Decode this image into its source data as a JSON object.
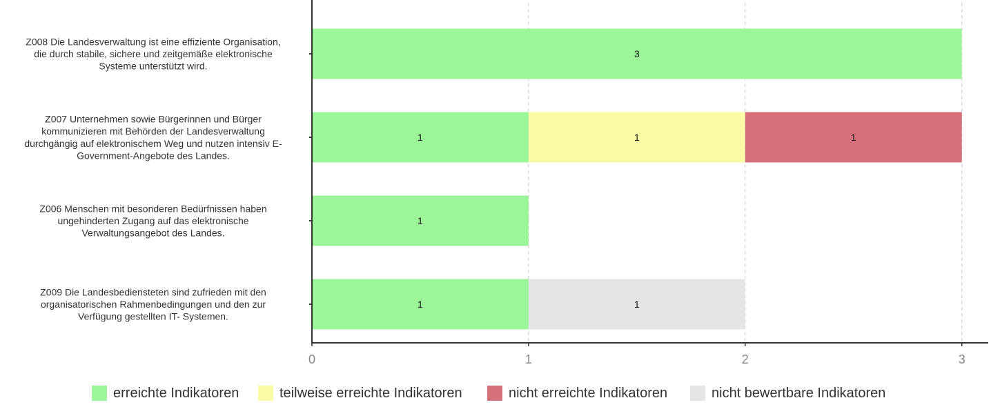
{
  "chart_data": {
    "type": "bar",
    "orientation": "horizontal",
    "stacked": true,
    "categories": [
      [
        "Z008 Die Landesverwaltung ist eine effiziente Organisation,",
        "die durch stabile, sichere und zeitgemäße elektronische",
        "Systeme unterstützt wird."
      ],
      [
        "Z007 Unternehmen sowie Bürgerinnen und Bürger",
        "kommunizieren mit Behörden der Landesverwaltung",
        "durchgängig auf elektronischem Weg und nutzen intensiv E-",
        "Government-Angebote des Landes."
      ],
      [
        "Z006 Menschen mit besonderen Bedürfnissen haben",
        "ungehinderten Zugang auf das elektronische",
        "Verwaltungsangebot des Landes."
      ],
      [
        "Z009 Die Landesbediensteten sind zufrieden mit den",
        "organisatorischen Rahmenbedingungen und den zur",
        "Verfügung gestellten IT- Systemen."
      ]
    ],
    "series": [
      {
        "name": "erreichte Indikatoren",
        "color": "#9cf598",
        "values": [
          3,
          1,
          1,
          1
        ]
      },
      {
        "name": "teilweise erreichte Indikatoren",
        "color": "#f9fca5",
        "values": [
          0,
          1,
          0,
          0
        ]
      },
      {
        "name": "nicht erreichte Indikatoren",
        "color": "#d6717b",
        "values": [
          0,
          1,
          0,
          0
        ]
      },
      {
        "name": "nicht bewertbare Indikatoren",
        "color": "#e5e5e5",
        "values": [
          0,
          0,
          0,
          1
        ]
      }
    ],
    "xlim": [
      0,
      3.15
    ],
    "xticks": [
      "0",
      "1",
      "2",
      "3"
    ],
    "grid": "vertical-dashed",
    "legend": "bottom",
    "title": "",
    "xlabel": "",
    "ylabel": ""
  }
}
